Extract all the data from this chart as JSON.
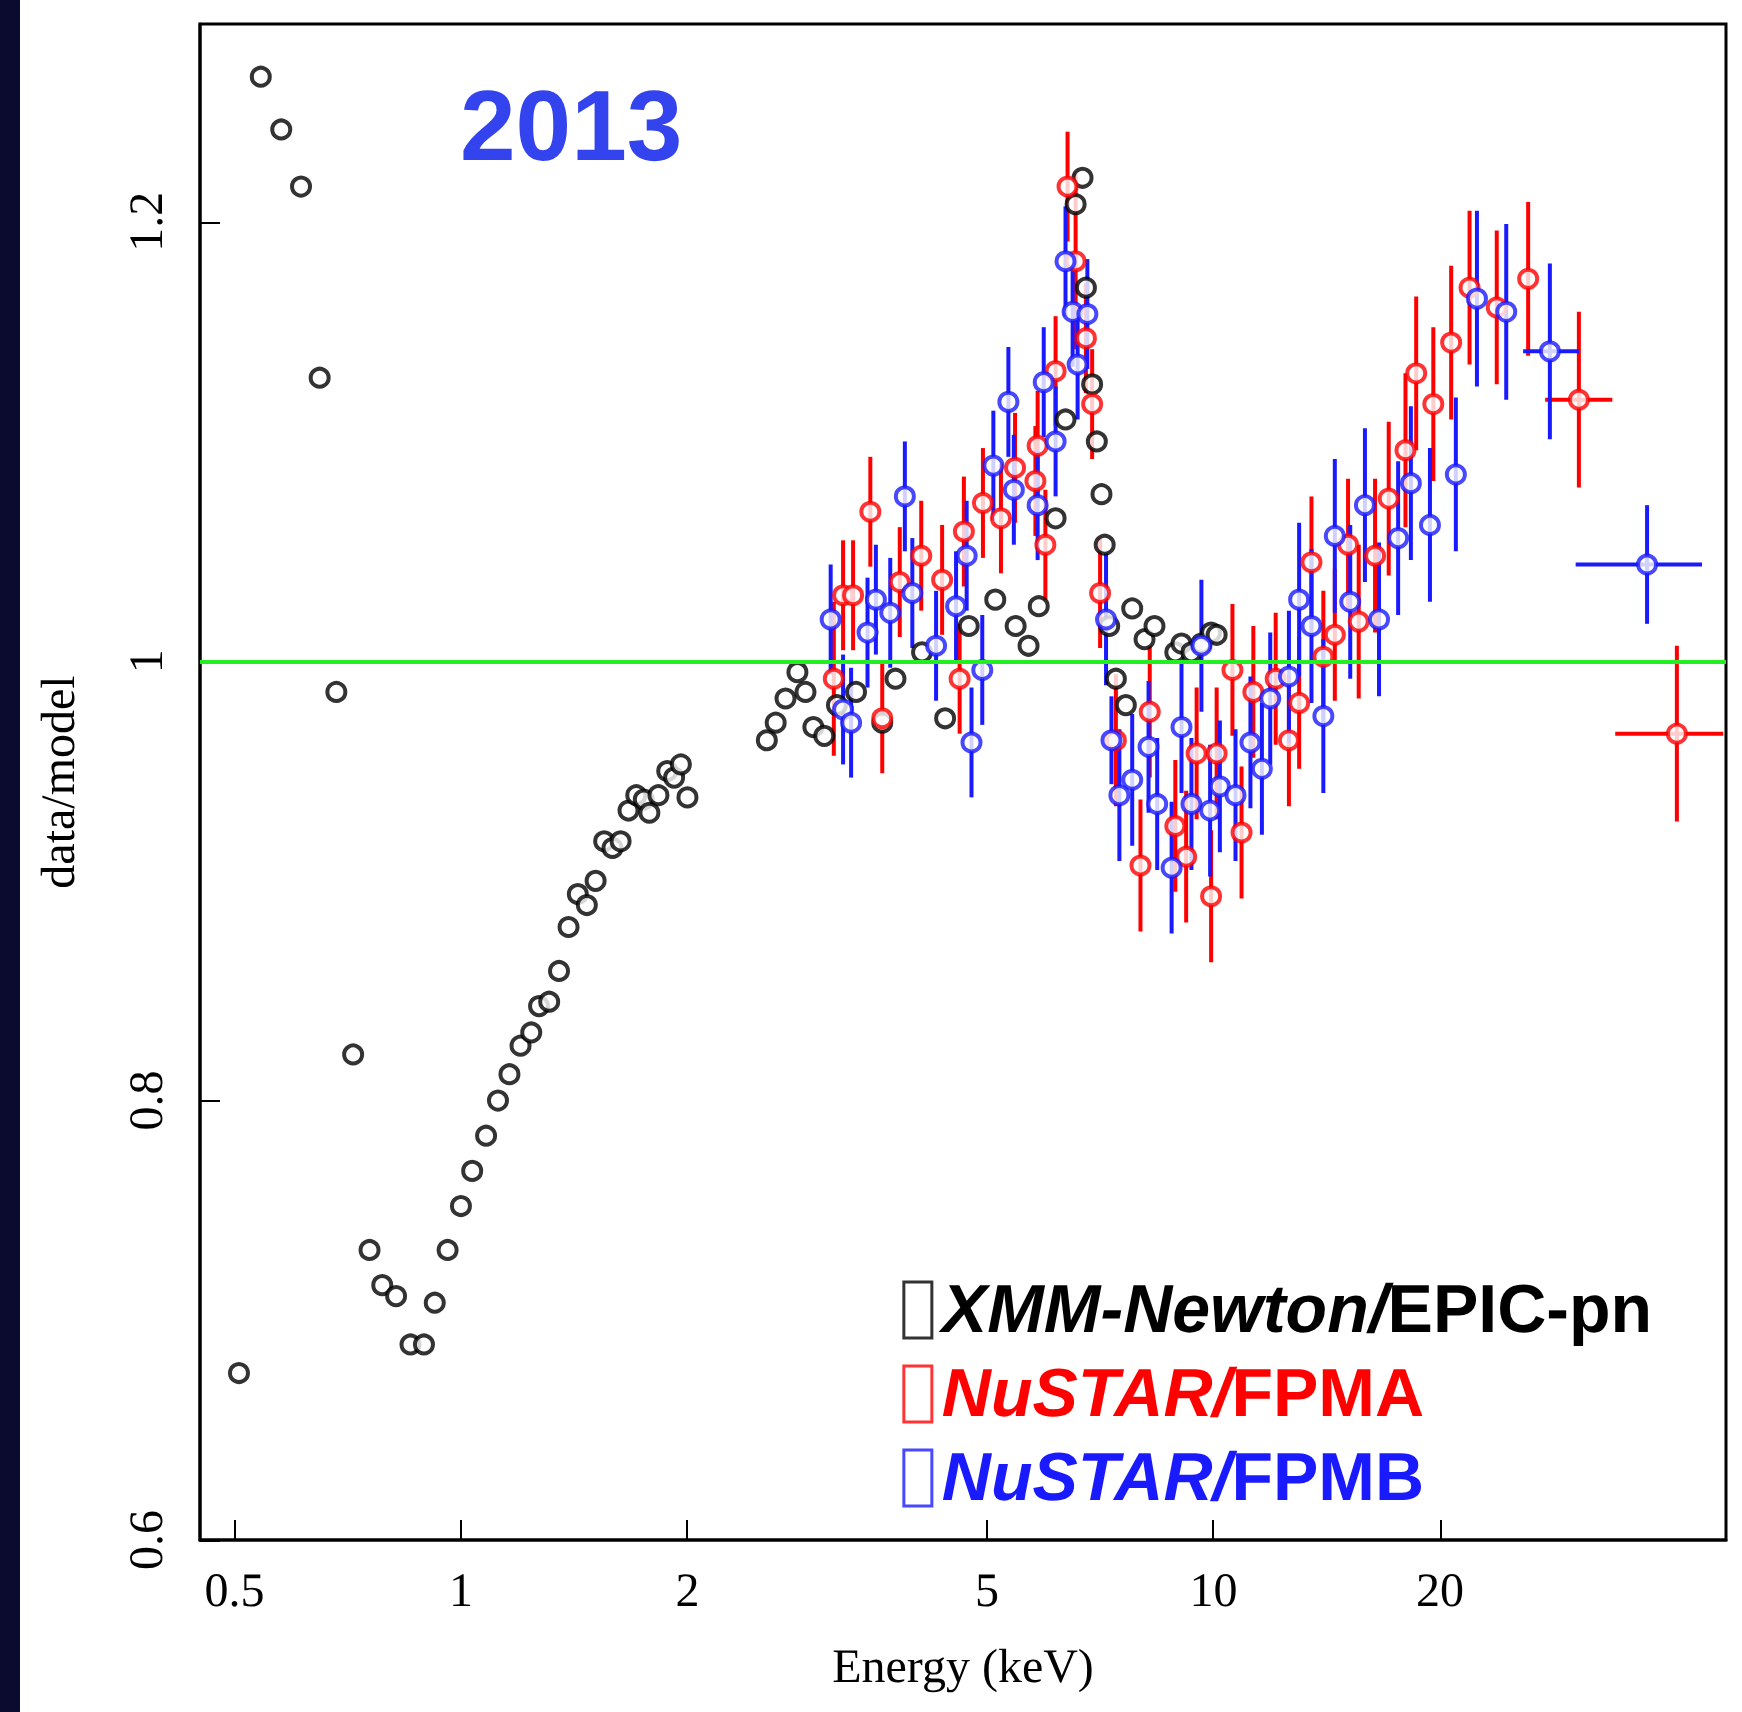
{
  "chart_data": {
    "type": "scatter",
    "xlabel": "Energy (keV)",
    "ylabel": "data/model",
    "annotations": [
      "2013"
    ],
    "log": "x",
    "xlim": [
      0.45,
      48
    ],
    "xticks": [
      0.5,
      1,
      2,
      5,
      10,
      20
    ],
    "ylim": [
      0.6,
      1.29
    ],
    "yticks": [
      0.6,
      0.8,
      1,
      1.2
    ],
    "grid": false,
    "legend": "bottom right",
    "marker": "circle",
    "ref_lines": [
      {
        "axis": "y",
        "value": 1,
        "color": "#22ee22"
      }
    ],
    "series": [
      {
        "name": "XMM-Newton/EPIC-pn",
        "color": "#000000",
        "x": [
          0.507,
          0.542,
          0.577,
          0.613,
          0.649,
          0.683,
          0.719,
          0.756,
          0.786,
          0.82,
          0.857,
          0.893,
          0.923,
          0.96,
          1.0,
          1.035,
          1.08,
          1.12,
          1.16,
          1.2,
          1.24,
          1.27,
          1.31,
          1.35,
          1.39,
          1.43,
          1.47,
          1.51,
          1.55,
          1.59,
          1.63,
          1.67,
          1.71,
          1.75,
          1.78,
          1.83,
          1.88,
          1.92,
          1.96,
          2.0,
          2.55,
          2.62,
          2.7,
          2.8,
          2.87,
          2.94,
          3.04,
          3.16,
          3.35,
          3.63,
          3.78,
          4.1,
          4.4,
          4.73,
          5.13,
          5.46,
          5.68,
          5.86,
          6.17,
          6.36,
          6.56,
          6.7,
          6.77,
          6.9,
          7.0,
          7.1,
          7.17,
          7.27,
          7.42,
          7.65,
          7.8,
          8.1,
          8.35,
          8.9,
          9.07,
          9.35,
          9.64,
          9.93,
          10.1
        ],
        "values": [
          0.676,
          1.266,
          1.242,
          1.216,
          1.129,
          0.986,
          0.821,
          0.732,
          0.716,
          0.711,
          0.689,
          0.689,
          0.708,
          0.732,
          0.752,
          0.768,
          0.784,
          0.8,
          0.812,
          0.825,
          0.831,
          0.843,
          0.845,
          0.859,
          0.879,
          0.894,
          0.889,
          0.9,
          0.918,
          0.915,
          0.918,
          0.932,
          0.939,
          0.937,
          0.931,
          0.939,
          0.95,
          0.947,
          0.953,
          0.938,
          0.964,
          0.972,
          0.983,
          0.995,
          0.986,
          0.97,
          0.966,
          0.98,
          0.986,
          0.972,
          0.992,
          1.004,
          0.974,
          1.016,
          1.028,
          1.016,
          1.007,
          1.025,
          1.065,
          1.11,
          1.208,
          1.22,
          1.17,
          1.126,
          1.1,
          1.076,
          1.053,
          1.016,
          0.992,
          0.98,
          1.024,
          1.01,
          1.016,
          1.004,
          1.008,
          1.004,
          1.008,
          1.013,
          1.012
        ]
      },
      {
        "name": "NuSTAR/FPMA",
        "color": "#ff0000",
        "x": [
          3.13,
          3.22,
          3.32,
          3.5,
          3.63,
          3.83,
          4.09,
          4.36,
          4.6,
          4.66,
          4.94,
          5.22,
          5.45,
          5.8,
          5.84,
          5.98,
          6.17,
          6.4,
          6.56,
          6.77,
          6.9,
          7.07,
          7.42,
          8.0,
          8.23,
          8.9,
          9.2,
          9.5,
          9.93,
          10.1,
          10.6,
          10.9,
          11.3,
          12.1,
          12.6,
          13.0,
          13.5,
          14.0,
          14.5,
          15.1,
          15.6,
          16.4,
          17.1,
          18.0,
          18.6,
          19.6,
          20.7,
          21.9,
          23.8,
          26.2,
          30.6,
          41.3
        ],
        "values": [
          0.992,
          1.03,
          1.03,
          1.068,
          0.974,
          1.036,
          1.048,
          1.037,
          0.992,
          1.059,
          1.072,
          1.065,
          1.088,
          1.082,
          1.098,
          1.053,
          1.132,
          1.216,
          1.182,
          1.147,
          1.117,
          1.031,
          0.964,
          0.907,
          0.977,
          0.925,
          0.911,
          0.958,
          0.893,
          0.958,
          0.996,
          0.922,
          0.986,
          0.992,
          0.964,
          0.981,
          1.045,
          1.002,
          1.012,
          1.053,
          1.018,
          1.048,
          1.074,
          1.096,
          1.131,
          1.117,
          1.145,
          1.17,
          1.161,
          1.174,
          1.119,
          0.967
        ],
        "errors": [
          0.035,
          0.025,
          0.025,
          0.025,
          0.025,
          0.025,
          0.025,
          0.025,
          0.025,
          0.025,
          0.025,
          0.025,
          0.025,
          0.025,
          0.025,
          0.025,
          0.025,
          0.025,
          0.04,
          0.025,
          0.025,
          0.025,
          0.03,
          0.03,
          0.03,
          0.03,
          0.03,
          0.03,
          0.03,
          0.03,
          0.03,
          0.03,
          0.03,
          0.03,
          0.03,
          0.03,
          0.03,
          0.03,
          0.03,
          0.03,
          0.035,
          0.035,
          0.035,
          0.035,
          0.035,
          0.035,
          0.035,
          0.035,
          0.035,
          0.035,
          0.04,
          0.04
        ],
        "xerrors": [
          null,
          null,
          null,
          null,
          null,
          null,
          null,
          null,
          null,
          null,
          null,
          null,
          null,
          null,
          null,
          null,
          null,
          null,
          null,
          null,
          null,
          null,
          null,
          null,
          null,
          null,
          null,
          null,
          null,
          null,
          null,
          null,
          null,
          null,
          null,
          null,
          null,
          null,
          null,
          null,
          null,
          null,
          null,
          null,
          null,
          null,
          null,
          null,
          null,
          null,
          [
            27.6,
            33.9
          ],
          [
            34.2,
            47.6
          ]
        ]
      },
      {
        "name": "NuSTAR/FPMB",
        "color": "#1a1aff",
        "x": [
          3.1,
          3.22,
          3.3,
          3.47,
          3.56,
          3.72,
          3.89,
          3.98,
          4.28,
          4.55,
          4.7,
          4.77,
          4.93,
          5.1,
          5.34,
          5.43,
          5.84,
          5.95,
          6.17,
          6.36,
          6.5,
          6.6,
          6.8,
          7.2,
          7.32,
          7.5,
          7.8,
          8.2,
          8.42,
          8.8,
          9.07,
          9.35,
          9.64,
          9.9,
          10.2,
          10.7,
          11.2,
          11.6,
          11.9,
          12.6,
          13.0,
          13.5,
          14.0,
          14.5,
          15.2,
          15.9,
          16.6,
          17.6,
          18.3,
          19.4,
          21.0,
          22.4,
          24.5,
          28.0,
          37.7
        ],
        "values": [
          1.019,
          0.978,
          0.972,
          1.013,
          1.028,
          1.022,
          1.075,
          1.031,
          1.007,
          1.025,
          1.048,
          0.963,
          0.996,
          1.089,
          1.118,
          1.078,
          1.071,
          1.127,
          1.1,
          1.182,
          1.159,
          1.135,
          1.158,
          1.019,
          0.964,
          0.939,
          0.946,
          0.961,
          0.935,
          0.906,
          0.97,
          0.935,
          1.007,
          0.932,
          0.943,
          0.939,
          0.963,
          0.951,
          0.983,
          0.993,
          1.028,
          1.016,
          0.975,
          1.057,
          1.027,
          1.071,
          1.019,
          1.056,
          1.081,
          1.062,
          1.085,
          1.165,
          1.159,
          1.141,
          1.044
        ],
        "errors": [
          0.025,
          0.025,
          0.025,
          0.025,
          0.025,
          0.025,
          0.025,
          0.025,
          0.025,
          0.025,
          0.025,
          0.025,
          0.025,
          0.025,
          0.025,
          0.025,
          0.025,
          0.025,
          0.025,
          0.025,
          0.025,
          0.025,
          0.025,
          0.03,
          0.02,
          0.03,
          0.03,
          0.03,
          0.03,
          0.03,
          0.03,
          0.03,
          0.03,
          0.03,
          0.03,
          0.03,
          0.03,
          0.03,
          0.03,
          0.03,
          0.035,
          0.035,
          0.035,
          0.035,
          0.035,
          0.035,
          0.035,
          0.035,
          0.035,
          0.035,
          0.035,
          0.04,
          0.04,
          0.04,
          0.027
        ],
        "xerrors": [
          null,
          null,
          null,
          null,
          null,
          null,
          null,
          null,
          null,
          null,
          null,
          null,
          null,
          null,
          null,
          null,
          null,
          null,
          null,
          null,
          null,
          null,
          null,
          null,
          null,
          null,
          null,
          null,
          null,
          null,
          null,
          null,
          null,
          null,
          null,
          null,
          null,
          null,
          null,
          null,
          null,
          null,
          null,
          null,
          null,
          null,
          null,
          null,
          null,
          null,
          null,
          null,
          null,
          [
            25.8,
            30.6
          ],
          [
            30.3,
            44.6
          ]
        ]
      }
    ]
  }
}
